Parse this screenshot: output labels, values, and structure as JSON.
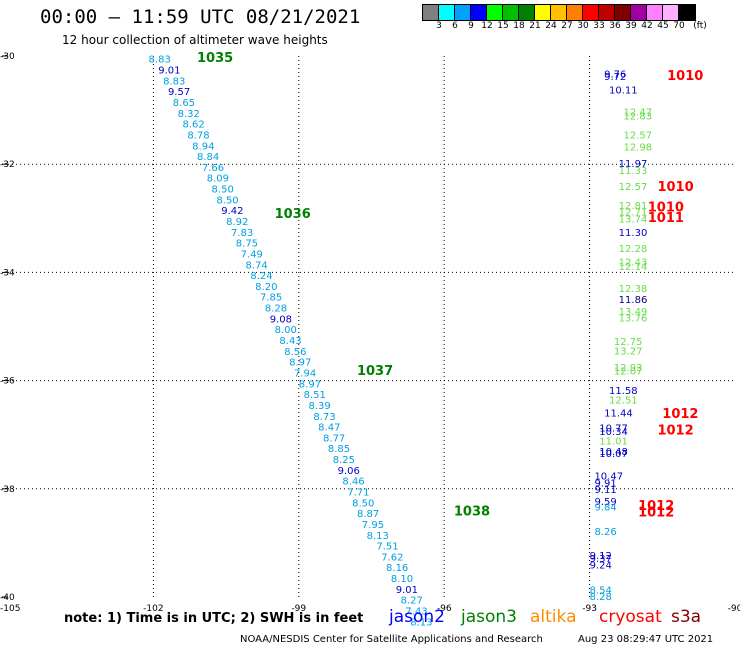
{
  "header": {
    "title": "00:00 – 11:59 UTC 08/21/2021",
    "subtitle": "12 hour collection of altimeter wave heights"
  },
  "colorbar": {
    "colors": [
      "#808080",
      "#00ffff",
      "#00a0ff",
      "#0000ff",
      "#00ff00",
      "#00c000",
      "#008000",
      "#ffff00",
      "#ffc000",
      "#ff8000",
      "#ff0000",
      "#c00000",
      "#800000",
      "#a000a0",
      "#ff80ff",
      "#ffb0ff",
      "#000000"
    ],
    "labels": [
      "3",
      "6",
      "9",
      "12",
      "15",
      "18",
      "21",
      "24",
      "27",
      "30",
      "33",
      "36",
      "39",
      "42",
      "45",
      "70"
    ],
    "unit": "(ft)"
  },
  "map": {
    "lon_ticks": [
      "-102",
      "-99",
      "-96",
      "-93",
      "-90"
    ],
    "lat_ticks": [
      "-30",
      "-32",
      "-34",
      "-36",
      "-38",
      "-40"
    ],
    "corner_label": "-105"
  },
  "pressure_labels": [
    {
      "text": "1035",
      "lon": -101.1,
      "lat": -30.02,
      "color": "#008000"
    },
    {
      "text": "1036",
      "lon": -99.5,
      "lat": -32.9,
      "color": "#008000"
    },
    {
      "text": "1037",
      "lon": -97.8,
      "lat": -35.8,
      "color": "#008000"
    },
    {
      "text": "1038",
      "lon": -95.8,
      "lat": -38.4,
      "color": "#008000"
    },
    {
      "text": "1010",
      "lon": -91.4,
      "lat": -30.35,
      "color": "#ff0000"
    },
    {
      "text": "1010",
      "lon": -91.6,
      "lat": -32.4,
      "color": "#ff0000"
    },
    {
      "text": "1010",
      "lon": -91.8,
      "lat": -32.78,
      "color": "#ff0000"
    },
    {
      "text": "1011",
      "lon": -91.8,
      "lat": -32.98,
      "color": "#ff0000"
    },
    {
      "text": "1012",
      "lon": -91.5,
      "lat": -36.6,
      "color": "#ff0000"
    },
    {
      "text": "1012",
      "lon": -91.6,
      "lat": -36.9,
      "color": "#ff0000"
    },
    {
      "text": "1012",
      "lon": -92.0,
      "lat": -38.3,
      "color": "#ff0000"
    },
    {
      "text": "1012",
      "lon": -92.0,
      "lat": -38.42,
      "color": "#ff0000"
    }
  ],
  "track_west": [
    {
      "text": "8.83",
      "lon": -102.1,
      "lat": -30.05,
      "color": "#00a0e0"
    },
    {
      "text": "9.01",
      "lon": -101.9,
      "lat": -30.25,
      "color": "#0000c8"
    },
    {
      "text": "8.83",
      "lon": -101.8,
      "lat": -30.45,
      "color": "#00a0e0"
    },
    {
      "text": "9.57",
      "lon": -101.7,
      "lat": -30.65,
      "color": "#0000c8"
    },
    {
      "text": "8.65",
      "lon": -101.6,
      "lat": -30.85,
      "color": "#00a0e0"
    },
    {
      "text": "8.32",
      "lon": -101.5,
      "lat": -31.05,
      "color": "#00a0e0"
    },
    {
      "text": "8.62",
      "lon": -101.4,
      "lat": -31.25,
      "color": "#00a0e0"
    },
    {
      "text": "8.78",
      "lon": -101.3,
      "lat": -31.45,
      "color": "#00a0e0"
    },
    {
      "text": "8.94",
      "lon": -101.2,
      "lat": -31.65,
      "color": "#00a0e0"
    },
    {
      "text": "8.84",
      "lon": -101.1,
      "lat": -31.85,
      "color": "#00a0e0"
    },
    {
      "text": "7.66",
      "lon": -101.0,
      "lat": -32.05,
      "color": "#00a0e0"
    },
    {
      "text": "8.09",
      "lon": -100.9,
      "lat": -32.25,
      "color": "#00a0e0"
    },
    {
      "text": "8.50",
      "lon": -100.8,
      "lat": -32.45,
      "color": "#00a0e0"
    },
    {
      "text": "8.50",
      "lon": -100.7,
      "lat": -32.65,
      "color": "#00a0e0"
    },
    {
      "text": "9.42",
      "lon": -100.6,
      "lat": -32.85,
      "color": "#0000c8"
    },
    {
      "text": "8.92",
      "lon": -100.5,
      "lat": -33.05,
      "color": "#00a0e0"
    },
    {
      "text": "7.83",
      "lon": -100.4,
      "lat": -33.25,
      "color": "#00a0e0"
    },
    {
      "text": "8.75",
      "lon": -100.3,
      "lat": -33.45,
      "color": "#00a0e0"
    },
    {
      "text": "7.49",
      "lon": -100.2,
      "lat": -33.65,
      "color": "#00a0e0"
    },
    {
      "text": "8.74",
      "lon": -100.1,
      "lat": -33.85,
      "color": "#00a0e0"
    },
    {
      "text": "8.24",
      "lon": -100.0,
      "lat": -34.05,
      "color": "#00a0e0"
    },
    {
      "text": "8.20",
      "lon": -99.9,
      "lat": -34.25,
      "color": "#00a0e0"
    },
    {
      "text": "7.85",
      "lon": -99.8,
      "lat": -34.45,
      "color": "#00a0e0"
    },
    {
      "text": "8.28",
      "lon": -99.7,
      "lat": -34.65,
      "color": "#00a0e0"
    },
    {
      "text": "9.08",
      "lon": -99.6,
      "lat": -34.85,
      "color": "#0000c8"
    },
    {
      "text": "8.00",
      "lon": -99.5,
      "lat": -35.05,
      "color": "#00a0e0"
    },
    {
      "text": "8.43",
      "lon": -99.4,
      "lat": -35.25,
      "color": "#00a0e0"
    },
    {
      "text": "8.56",
      "lon": -99.3,
      "lat": -35.45,
      "color": "#00a0e0"
    },
    {
      "text": "8.97",
      "lon": -99.2,
      "lat": -35.65,
      "color": "#00a0e0"
    },
    {
      "text": "7.94",
      "lon": -99.1,
      "lat": -35.85,
      "color": "#00a0e0"
    },
    {
      "text": "8.97",
      "lon": -99.0,
      "lat": -36.05,
      "color": "#00a0e0"
    },
    {
      "text": "8.51",
      "lon": -98.9,
      "lat": -36.25,
      "color": "#00a0e0"
    },
    {
      "text": "8.39",
      "lon": -98.8,
      "lat": -36.45,
      "color": "#00a0e0"
    },
    {
      "text": "8.73",
      "lon": -98.7,
      "lat": -36.65,
      "color": "#00a0e0"
    },
    {
      "text": "8.47",
      "lon": -98.6,
      "lat": -36.85,
      "color": "#00a0e0"
    },
    {
      "text": "8.77",
      "lon": -98.5,
      "lat": -37.05,
      "color": "#00a0e0"
    },
    {
      "text": "8.85",
      "lon": -98.4,
      "lat": -37.25,
      "color": "#00a0e0"
    },
    {
      "text": "8.25",
      "lon": -98.3,
      "lat": -37.45,
      "color": "#00a0e0"
    },
    {
      "text": "9.06",
      "lon": -98.2,
      "lat": -37.65,
      "color": "#0000c8"
    },
    {
      "text": "8.46",
      "lon": -98.1,
      "lat": -37.85,
      "color": "#00a0e0"
    },
    {
      "text": "7.71",
      "lon": -98.0,
      "lat": -38.05,
      "color": "#00a0e0"
    },
    {
      "text": "8.50",
      "lon": -97.9,
      "lat": -38.25,
      "color": "#00a0e0"
    },
    {
      "text": "8.87",
      "lon": -97.8,
      "lat": -38.45,
      "color": "#00a0e0"
    },
    {
      "text": "7.95",
      "lon": -97.7,
      "lat": -38.65,
      "color": "#00a0e0"
    },
    {
      "text": "8.13",
      "lon": -97.6,
      "lat": -38.85,
      "color": "#00a0e0"
    },
    {
      "text": "7.51",
      "lon": -97.4,
      "lat": -39.05,
      "color": "#00a0e0"
    },
    {
      "text": "7.62",
      "lon": -97.3,
      "lat": -39.25,
      "color": "#00a0e0"
    },
    {
      "text": "8.16",
      "lon": -97.2,
      "lat": -39.45,
      "color": "#00a0e0"
    },
    {
      "text": "8.10",
      "lon": -97.1,
      "lat": -39.65,
      "color": "#00a0e0"
    },
    {
      "text": "9.01",
      "lon": -97.0,
      "lat": -39.85,
      "color": "#0000c8"
    },
    {
      "text": "8.27",
      "lon": -96.9,
      "lat": -40.05,
      "color": "#00a0e0"
    },
    {
      "text": "7.43",
      "lon": -96.8,
      "lat": -40.25,
      "color": "#00a0e0"
    },
    {
      "text": "8.13",
      "lon": -96.7,
      "lat": -40.45,
      "color": "#00a0e0"
    }
  ],
  "track_east": [
    {
      "text": "9.76",
      "lon": -92.7,
      "lat": -30.32,
      "color": "#0000c8"
    },
    {
      "text": "9.72",
      "lon": -92.7,
      "lat": -30.37,
      "color": "#0000c8"
    },
    {
      "text": "10.11",
      "lon": -92.6,
      "lat": -30.62,
      "color": "#0000c8"
    },
    {
      "text": "12.47",
      "lon": -92.3,
      "lat": -31.03,
      "color": "#66dd44"
    },
    {
      "text": "12.83",
      "lon": -92.3,
      "lat": -31.1,
      "color": "#66dd44"
    },
    {
      "text": "12.57",
      "lon": -92.3,
      "lat": -31.45,
      "color": "#66dd44"
    },
    {
      "text": "12.98",
      "lon": -92.3,
      "lat": -31.67,
      "color": "#66dd44"
    },
    {
      "text": "11.97",
      "lon": -92.4,
      "lat": -31.98,
      "color": "#0000c8"
    },
    {
      "text": "11.33",
      "lon": -92.4,
      "lat": -32.11,
      "color": "#66dd44"
    },
    {
      "text": "12.57",
      "lon": -92.4,
      "lat": -32.4,
      "color": "#66dd44"
    },
    {
      "text": "12.81",
      "lon": -92.4,
      "lat": -32.75,
      "color": "#66dd44"
    },
    {
      "text": "12.71",
      "lon": -92.4,
      "lat": -32.87,
      "color": "#66dd44"
    },
    {
      "text": "13.74",
      "lon": -92.4,
      "lat": -33.0,
      "color": "#66dd44"
    },
    {
      "text": "11.30",
      "lon": -92.4,
      "lat": -33.25,
      "color": "#0000c8"
    },
    {
      "text": "12.28",
      "lon": -92.4,
      "lat": -33.55,
      "color": "#66dd44"
    },
    {
      "text": "12.43",
      "lon": -92.4,
      "lat": -33.8,
      "color": "#66dd44"
    },
    {
      "text": "12.14",
      "lon": -92.4,
      "lat": -33.88,
      "color": "#66dd44"
    },
    {
      "text": "12.38",
      "lon": -92.4,
      "lat": -34.29,
      "color": "#66dd44"
    },
    {
      "text": "11.86",
      "lon": -92.4,
      "lat": -34.49,
      "color": "#000080"
    },
    {
      "text": "13.49",
      "lon": -92.4,
      "lat": -34.71,
      "color": "#66dd44"
    },
    {
      "text": "13.76",
      "lon": -92.4,
      "lat": -34.83,
      "color": "#66dd44"
    },
    {
      "text": "12.75",
      "lon": -92.5,
      "lat": -35.27,
      "color": "#66dd44"
    },
    {
      "text": "13.27",
      "lon": -92.5,
      "lat": -35.44,
      "color": "#66dd44"
    },
    {
      "text": "12.93",
      "lon": -92.5,
      "lat": -35.75,
      "color": "#66dd44"
    },
    {
      "text": "12.07",
      "lon": -92.5,
      "lat": -35.81,
      "color": "#66dd44"
    },
    {
      "text": "11.58",
      "lon": -92.6,
      "lat": -36.17,
      "color": "#0000c8"
    },
    {
      "text": "12.51",
      "lon": -92.6,
      "lat": -36.35,
      "color": "#66dd44"
    },
    {
      "text": "11.44",
      "lon": -92.7,
      "lat": -36.59,
      "color": "#0000c8"
    },
    {
      "text": "10.77",
      "lon": -92.8,
      "lat": -36.87,
      "color": "#0000c8"
    },
    {
      "text": "10.34",
      "lon": -92.8,
      "lat": -36.93,
      "color": "#0000c8"
    },
    {
      "text": "11.01",
      "lon": -92.8,
      "lat": -37.11,
      "color": "#66dd44"
    },
    {
      "text": "10.48",
      "lon": -92.8,
      "lat": -37.3,
      "color": "#0000c8"
    },
    {
      "text": "10.07",
      "lon": -92.8,
      "lat": -37.34,
      "color": "#0000c8"
    },
    {
      "text": "10.47",
      "lon": -92.9,
      "lat": -37.75,
      "color": "#0000c8"
    },
    {
      "text": "9.91",
      "lon": -92.9,
      "lat": -37.88,
      "color": "#0000c8"
    },
    {
      "text": "9.11",
      "lon": -92.9,
      "lat": -38.0,
      "color": "#0000c8"
    },
    {
      "text": "9.59",
      "lon": -92.9,
      "lat": -38.23,
      "color": "#0000c8"
    },
    {
      "text": "9.84",
      "lon": -92.9,
      "lat": -38.33,
      "color": "#00a0e0"
    },
    {
      "text": "8.26",
      "lon": -92.9,
      "lat": -38.78,
      "color": "#00a0e0"
    },
    {
      "text": "9.12",
      "lon": -93.0,
      "lat": -39.22,
      "color": "#0000c8"
    },
    {
      "text": "9.37",
      "lon": -93.0,
      "lat": -39.28,
      "color": "#0000c8"
    },
    {
      "text": "9.24",
      "lon": -93.0,
      "lat": -39.4,
      "color": "#0000c8"
    },
    {
      "text": "8.54",
      "lon": -93.0,
      "lat": -39.86,
      "color": "#00a0e0"
    },
    {
      "text": "8.28",
      "lon": -93.0,
      "lat": -39.98,
      "color": "#00a0e0"
    }
  ],
  "legend": {
    "note": "note:  1) Time is in UTC;  2) SWH is in feet",
    "satellites": [
      {
        "name": "jason2",
        "color": "#0000ff"
      },
      {
        "name": "jason3",
        "color": "#008000"
      },
      {
        "name": "altika",
        "color": "#ff8c00"
      },
      {
        "name": "cryosat",
        "color": "#ff0000"
      },
      {
        "name": "s3a",
        "color": "#800000"
      }
    ],
    "credit": "NOAA/NESDIS Center for Satellite Applications and Research",
    "timestamp": "Aug 23 08:29:47 UTC 2021"
  }
}
